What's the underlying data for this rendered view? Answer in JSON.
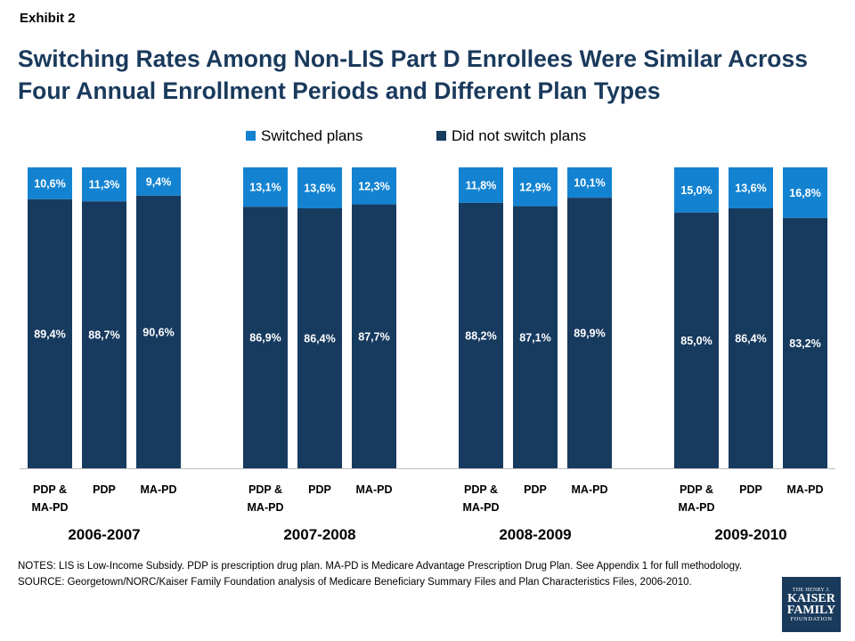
{
  "header": {
    "exhibit": "Exhibit 2",
    "title": "Switching Rates Among Non-LIS Part D Enrollees Were Similar Across Four Annual Enrollment Periods and Different Plan Types"
  },
  "colors": {
    "switched": "#1383d1",
    "not_switched": "#173a5f",
    "title": "#1a3a5c"
  },
  "chart_data": {
    "type": "bar",
    "stacked": true,
    "legend": [
      "Switched plans",
      "Did not switch plans"
    ],
    "legend_position": "top",
    "ylim": [
      0,
      100
    ],
    "groups": [
      {
        "period": "2006-2007",
        "bars": [
          {
            "category": "PDP & MA-PD",
            "switched": 10.6,
            "not_switched": 89.4,
            "switched_label": "10,6%",
            "not_switched_label": "89,4%"
          },
          {
            "category": "PDP",
            "switched": 11.3,
            "not_switched": 88.7,
            "switched_label": "11,3%",
            "not_switched_label": "88,7%"
          },
          {
            "category": "MA-PD",
            "switched": 9.4,
            "not_switched": 90.6,
            "switched_label": "9,4%",
            "not_switched_label": "90,6%"
          }
        ]
      },
      {
        "period": "2007-2008",
        "bars": [
          {
            "category": "PDP & MA-PD",
            "switched": 13.1,
            "not_switched": 86.9,
            "switched_label": "13,1%",
            "not_switched_label": "86,9%"
          },
          {
            "category": "PDP",
            "switched": 13.6,
            "not_switched": 86.4,
            "switched_label": "13,6%",
            "not_switched_label": "86,4%"
          },
          {
            "category": "MA-PD",
            "switched": 12.3,
            "not_switched": 87.7,
            "switched_label": "12,3%",
            "not_switched_label": "87,7%"
          }
        ]
      },
      {
        "period": "2008-2009",
        "bars": [
          {
            "category": "PDP & MA-PD",
            "switched": 11.8,
            "not_switched": 88.2,
            "switched_label": "11,8%",
            "not_switched_label": "88,2%"
          },
          {
            "category": "PDP",
            "switched": 12.9,
            "not_switched": 87.1,
            "switched_label": "12,9%",
            "not_switched_label": "87,1%"
          },
          {
            "category": "MA-PD",
            "switched": 10.1,
            "not_switched": 89.9,
            "switched_label": "10,1%",
            "not_switched_label": "89,9%"
          }
        ]
      },
      {
        "period": "2009-2010",
        "bars": [
          {
            "category": "PDP & MA-PD",
            "switched": 15.0,
            "not_switched": 85.0,
            "switched_label": "15,0%",
            "not_switched_label": "85,0%"
          },
          {
            "category": "PDP",
            "switched": 13.6,
            "not_switched": 86.4,
            "switched_label": "13,6%",
            "not_switched_label": "86,4%"
          },
          {
            "category": "MA-PD",
            "switched": 16.8,
            "not_switched": 83.2,
            "switched_label": "16,8%",
            "not_switched_label": "83,2%"
          }
        ]
      }
    ]
  },
  "notes": {
    "line1": "NOTES: LIS is Low-Income Subsidy. PDP is prescription drug plan. MA-PD is Medicare Advantage Prescription Drug Plan. See Appendix 1 for full methodology.",
    "line2": "SOURCE: Georgetown/NORC/Kaiser Family Foundation  analysis of Medicare Beneficiary Summary Files and Plan Characteristics Files, 2006-2010."
  },
  "logo": {
    "line1": "THE HENRY J.",
    "line2a": "KAISER",
    "line2b": "FAMILY",
    "line3": "FOUNDATION"
  }
}
